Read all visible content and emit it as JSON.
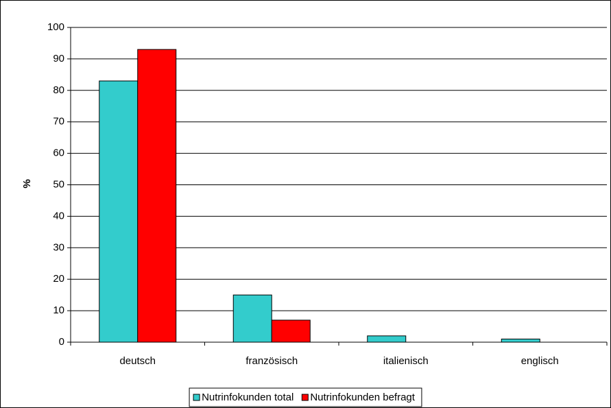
{
  "chart_data": {
    "type": "bar",
    "y_label": "%",
    "categories": [
      "deutsch",
      "französisch",
      "italienisch",
      "englisch"
    ],
    "series": [
      {
        "name": "Nutrinfokunden total",
        "color": "#33cccc",
        "values": [
          83,
          15,
          2,
          1
        ]
      },
      {
        "name": "Nutrinfokunden befragt",
        "color": "#ff0000",
        "values": [
          93,
          7,
          0,
          0
        ]
      }
    ],
    "ylim": [
      0,
      100
    ],
    "yticks": [
      0,
      10,
      20,
      30,
      40,
      50,
      60,
      70,
      80,
      90,
      100
    ],
    "grid": true,
    "legend": "bottom"
  }
}
